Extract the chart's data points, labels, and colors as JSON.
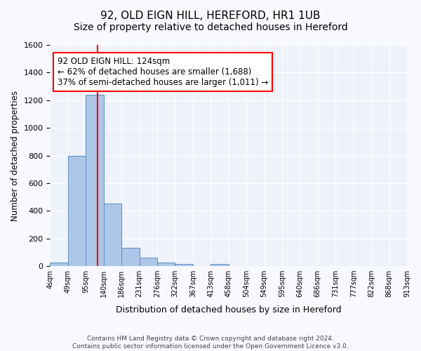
{
  "title_line1": "92, OLD EIGN HILL, HEREFORD, HR1 1UB",
  "title_line2": "Size of property relative to detached houses in Hereford",
  "xlabel": "Distribution of detached houses by size in Hereford",
  "ylabel": "Number of detached properties",
  "bar_values": [
    25,
    800,
    1240,
    450,
    130,
    60,
    25,
    15,
    0,
    15,
    0,
    0,
    0,
    0,
    0,
    0,
    0,
    0,
    0,
    0
  ],
  "tick_labels": [
    "4sqm",
    "49sqm",
    "95sqm",
    "140sqm",
    "186sqm",
    "231sqm",
    "276sqm",
    "322sqm",
    "367sqm",
    "413sqm",
    "458sqm",
    "504sqm",
    "549sqm",
    "595sqm",
    "640sqm",
    "686sqm",
    "731sqm",
    "777sqm",
    "822sqm",
    "868sqm",
    "913sqm"
  ],
  "bar_color": "#aec6e8",
  "bar_edge_color": "#5a8fc2",
  "bg_color": "#eef2fb",
  "grid_color": "#ffffff",
  "vline_color": "red",
  "annotation_text": "92 OLD EIGN HILL: 124sqm\n← 62% of detached houses are smaller (1,688)\n37% of semi-detached houses are larger (1,011) →",
  "annotation_box_color": "white",
  "annotation_box_edge": "red",
  "ylim": [
    0,
    1600
  ],
  "yticks": [
    0,
    200,
    400,
    600,
    800,
    1000,
    1200,
    1400,
    1600
  ],
  "footnote": "Contains HM Land Registry data © Crown copyright and database right 2024.\nContains public sector information licensed under the Open Government Licence v3.0.",
  "title_fontsize": 11,
  "subtitle_fontsize": 10,
  "annotation_fontsize": 8.5,
  "fig_facecolor": "#f8f8ff"
}
